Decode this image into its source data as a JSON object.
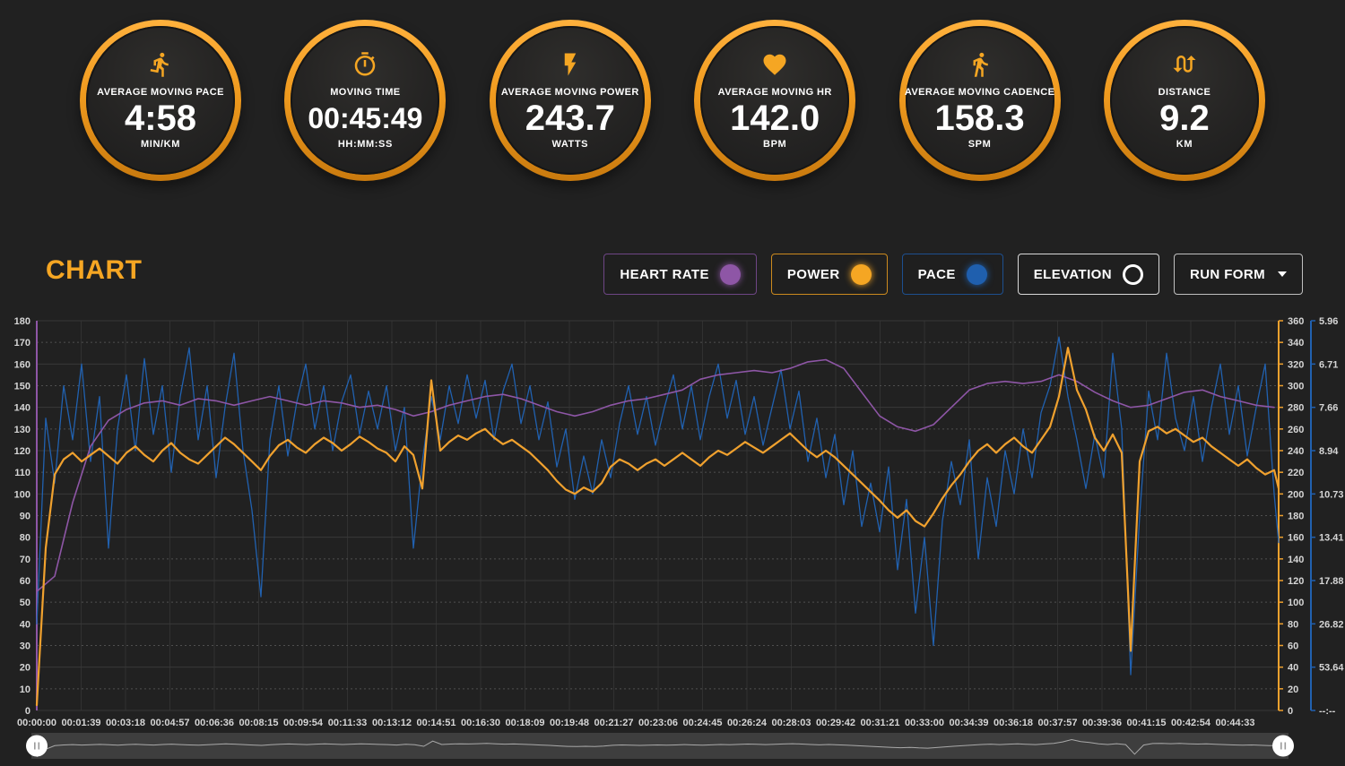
{
  "page_bg": "#212121",
  "gauges": [
    {
      "icon": "runner-icon",
      "label": "AVERAGE MOVING PACE",
      "value": "4:58",
      "unit": "MIN/KM"
    },
    {
      "icon": "stopwatch-icon",
      "label": "MOVING TIME",
      "value": "00:45:49",
      "unit": "HH:MM:SS"
    },
    {
      "icon": "bolt-icon",
      "label": "AVERAGE MOVING POWER",
      "value": "243.7",
      "unit": "WATTS"
    },
    {
      "icon": "heart-icon",
      "label": "AVERAGE MOVING HR",
      "value": "142.0",
      "unit": "BPM"
    },
    {
      "icon": "walker-icon",
      "label": "AVERAGE MOVING CADENCE",
      "value": "158.3",
      "unit": "SPM"
    },
    {
      "icon": "route-icon",
      "label": "DISTANCE",
      "value": "9.2",
      "unit": "KM"
    }
  ],
  "chart_header": {
    "title": "CHART",
    "toggles": [
      {
        "label": "HEART RATE",
        "dot": "filled",
        "color": "#8e56a6",
        "border": "#6e4685"
      },
      {
        "label": "POWER",
        "dot": "filled",
        "color": "#f5a623",
        "border": "#cc8a1e"
      },
      {
        "label": "PACE",
        "dot": "filled",
        "color": "#1f5fae",
        "border": "#1d4f8f"
      },
      {
        "label": "ELEVATION",
        "dot": "outline",
        "color": "#ffffff",
        "border": "#d9d9d9"
      },
      {
        "label": "RUN FORM",
        "dot": "none",
        "caret": true,
        "border": "#c0c0c0"
      }
    ]
  },
  "chart_data": {
    "type": "line",
    "title": "",
    "grid": true,
    "x_axis": {
      "total_s": 2770,
      "tick_interval_s": 99,
      "labels": [
        "00:00:00",
        "00:01:39",
        "00:03:18",
        "00:04:57",
        "00:06:36",
        "00:08:15",
        "00:09:54",
        "00:11:33",
        "00:13:12",
        "00:14:51",
        "00:16:30",
        "00:18:09",
        "00:19:48",
        "00:21:27",
        "00:23:06",
        "00:24:45",
        "00:26:24",
        "00:28:03",
        "00:29:42",
        "00:31:21",
        "00:33:00",
        "00:34:39",
        "00:36:18",
        "00:37:57",
        "00:39:36",
        "00:41:15",
        "00:42:54",
        "00:44:33"
      ]
    },
    "axes": {
      "heart_rate": {
        "side": "left",
        "min": 0,
        "max": 180,
        "step": 10,
        "color": "#8e56a6"
      },
      "power": {
        "side": "right",
        "min": 0,
        "max": 360,
        "step": 20,
        "color": "#f0a12e"
      },
      "pace": {
        "side": "far-right",
        "color": "#2161b0",
        "constant": 2145.6,
        "tick_positions": [
          360,
          320,
          280,
          240,
          200,
          160,
          120,
          80,
          40,
          0
        ],
        "tick_labels": [
          "5.96",
          "6.71",
          "7.66",
          "8.94",
          "10.73",
          "13.41",
          "17.88",
          "26.82",
          "53.64",
          "--:--"
        ]
      }
    },
    "series": [
      {
        "name": "Pace",
        "axis": "pace",
        "color": "#2161b0",
        "width": 1.3,
        "step_s": 20,
        "note": "values are plot positions on the 0-360 scale; pace min/km = 2145.6/value",
        "values": [
          80,
          270,
          210,
          300,
          250,
          320,
          230,
          290,
          150,
          260,
          310,
          240,
          325,
          255,
          300,
          220,
          290,
          335,
          250,
          300,
          215,
          280,
          330,
          240,
          185,
          105,
          250,
          300,
          235,
          285,
          320,
          260,
          300,
          240,
          285,
          310,
          255,
          295,
          260,
          300,
          240,
          280,
          150,
          230,
          290,
          250,
          300,
          265,
          310,
          270,
          305,
          250,
          295,
          320,
          265,
          300,
          250,
          285,
          225,
          260,
          195,
          235,
          200,
          250,
          215,
          265,
          300,
          255,
          290,
          245,
          280,
          310,
          260,
          300,
          250,
          290,
          320,
          270,
          305,
          255,
          290,
          245,
          280,
          315,
          260,
          295,
          230,
          270,
          215,
          255,
          190,
          240,
          170,
          210,
          165,
          225,
          130,
          195,
          90,
          160,
          60,
          175,
          230,
          190,
          250,
          140,
          215,
          170,
          240,
          200,
          260,
          215,
          275,
          300,
          345,
          290,
          250,
          205,
          255,
          215,
          330,
          260,
          33,
          180,
          295,
          250,
          330,
          270,
          240,
          290,
          230,
          280,
          320,
          255,
          300,
          235,
          280,
          320,
          200,
          155
        ]
      },
      {
        "name": "Heart Rate",
        "axis": "heart_rate",
        "color": "#8e56a6",
        "width": 1.6,
        "step_s": 40,
        "values": [
          55,
          62,
          96,
          122,
          134,
          139,
          142,
          143,
          141,
          144,
          143,
          141,
          143,
          145,
          143,
          141,
          143,
          142,
          140,
          141,
          139,
          136,
          138,
          141,
          143,
          145,
          146,
          144,
          141,
          138,
          136,
          138,
          141,
          143,
          144,
          146,
          148,
          153,
          155,
          156,
          157,
          156,
          158,
          161,
          162,
          158,
          147,
          136,
          131,
          129,
          132,
          140,
          148,
          151,
          152,
          151,
          152,
          155,
          152,
          147,
          143,
          140,
          141,
          144,
          147,
          148,
          145,
          143,
          141,
          140
        ]
      },
      {
        "name": "Power",
        "axis": "power",
        "color": "#f0a12e",
        "width": 2.2,
        "step_s": 20,
        "values": [
          5,
          150,
          218,
          232,
          238,
          230,
          236,
          242,
          235,
          228,
          238,
          244,
          236,
          230,
          240,
          247,
          238,
          232,
          228,
          236,
          244,
          252,
          246,
          238,
          230,
          222,
          235,
          245,
          250,
          243,
          238,
          246,
          252,
          247,
          240,
          246,
          253,
          248,
          242,
          238,
          230,
          244,
          236,
          205,
          305,
          240,
          248,
          254,
          250,
          256,
          260,
          252,
          246,
          250,
          244,
          238,
          230,
          222,
          212,
          204,
          200,
          206,
          202,
          210,
          225,
          232,
          228,
          222,
          228,
          232,
          226,
          232,
          238,
          232,
          226,
          234,
          240,
          236,
          242,
          248,
          243,
          238,
          244,
          250,
          256,
          248,
          240,
          234,
          240,
          234,
          226,
          218,
          210,
          202,
          194,
          185,
          178,
          185,
          175,
          170,
          182,
          196,
          208,
          218,
          230,
          240,
          246,
          238,
          246,
          252,
          244,
          238,
          250,
          262,
          290,
          335,
          296,
          278,
          252,
          240,
          255,
          238,
          55,
          230,
          258,
          262,
          256,
          260,
          254,
          248,
          252,
          244,
          238,
          232,
          226,
          232,
          224,
          218,
          222,
          205
        ]
      }
    ]
  },
  "navigator": {
    "overview_series": "Power",
    "line_color": "#a9a9a9",
    "track_color": "#3e3e3e",
    "handles": [
      "left",
      "right"
    ]
  }
}
